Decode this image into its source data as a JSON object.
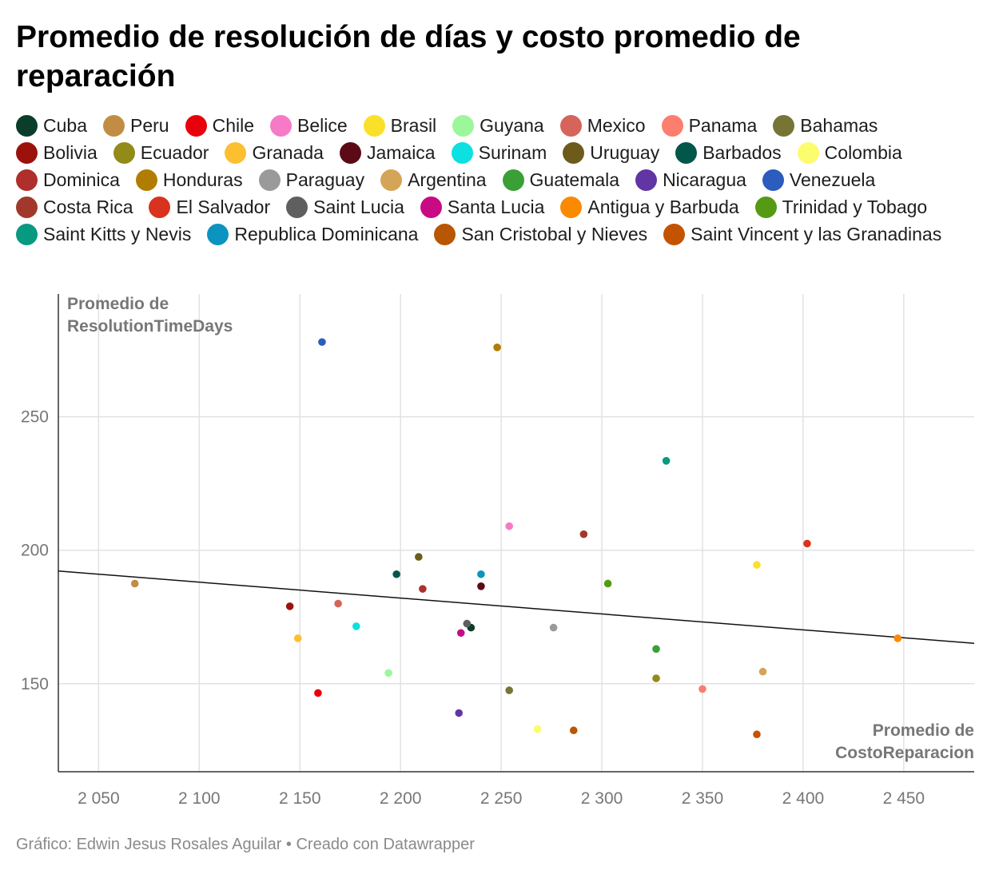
{
  "title": "Promedio de resolución de días y costo promedio de reparación",
  "footer": "Gráfico: Edwin Jesus Rosales Aguilar • Creado con Datawrapper",
  "chart_data": {
    "type": "scatter",
    "title": "Promedio de resolución de días y costo promedio de reparación",
    "xlabel_lines": [
      "Promedio de",
      "CostoReparacion"
    ],
    "ylabel_lines": [
      "Promedio de",
      "ResolutionTimeDays"
    ],
    "xlim": [
      2030,
      2485
    ],
    "ylim": [
      117,
      296
    ],
    "xticks": [
      2050,
      2100,
      2150,
      2200,
      2250,
      2300,
      2350,
      2400,
      2450
    ],
    "xtick_labels": [
      "2 050",
      "2 100",
      "2 150",
      "2 200",
      "2 250",
      "2 300",
      "2 350",
      "2 400",
      "2 450"
    ],
    "yticks": [
      150,
      200,
      250
    ],
    "ytick_labels": [
      "150",
      "200",
      "250"
    ],
    "grid": true,
    "legend_placement": "top",
    "trendline": {
      "x": [
        2030,
        2485
      ],
      "y": [
        192.2,
        165.1
      ]
    },
    "series": [
      {
        "name": "Cuba",
        "color": "#0b3d2b",
        "x": 2235,
        "y": 171
      },
      {
        "name": "Peru",
        "color": "#c18d45",
        "x": 2068,
        "y": 187.5
      },
      {
        "name": "Chile",
        "color": "#e8000b",
        "x": 2159,
        "y": 146.5
      },
      {
        "name": "Belice",
        "color": "#f77ac7",
        "x": 2254,
        "y": 209
      },
      {
        "name": "Brasil",
        "color": "#fbe029",
        "x": 2377,
        "y": 194.5
      },
      {
        "name": "Guyana",
        "color": "#9cf79a",
        "x": 2194,
        "y": 154
      },
      {
        "name": "Mexico",
        "color": "#d6645a",
        "x": 2169,
        "y": 180
      },
      {
        "name": "Panama",
        "color": "#fd7d6e",
        "x": 2350,
        "y": 148
      },
      {
        "name": "Bahamas",
        "color": "#767536",
        "x": 2254,
        "y": 147.5
      },
      {
        "name": "Bolivia",
        "color": "#9b120d",
        "x": 2145,
        "y": 179
      },
      {
        "name": "Ecuador",
        "color": "#928a19",
        "x": 2327,
        "y": 152
      },
      {
        "name": "Granada",
        "color": "#fbbf30",
        "x": 2149,
        "y": 167
      },
      {
        "name": "Jamaica",
        "color": "#5c0a16",
        "x": 2240,
        "y": 186.5
      },
      {
        "name": "Surinam",
        "color": "#0ce0e0",
        "x": 2178,
        "y": 171.5
      },
      {
        "name": "Uruguay",
        "color": "#6d5b1c",
        "x": 2209,
        "y": 197.5
      },
      {
        "name": "Barbados",
        "color": "#03564a",
        "x": 2198,
        "y": 191
      },
      {
        "name": "Colombia",
        "color": "#fcfc6c",
        "x": 2268,
        "y": 133
      },
      {
        "name": "Dominica",
        "color": "#ae2f2c",
        "x": 2211,
        "y": 185.5
      },
      {
        "name": "Honduras",
        "color": "#b07d02",
        "x": 2248,
        "y": 276
      },
      {
        "name": "Paraguay",
        "color": "#9a9a9a",
        "x": 2276,
        "y": 171
      },
      {
        "name": "Argentina",
        "color": "#d4a557",
        "x": 2380,
        "y": 154.5
      },
      {
        "name": "Guatemala",
        "color": "#3aa036",
        "x": 2327,
        "y": 163
      },
      {
        "name": "Nicaragua",
        "color": "#6235a5",
        "x": 2229,
        "y": 139
      },
      {
        "name": "Venezuela",
        "color": "#2b5cbe",
        "x": 2161,
        "y": 278
      },
      {
        "name": "Costa Rica",
        "color": "#a2382c",
        "x": 2291,
        "y": 206
      },
      {
        "name": "El Salvador",
        "color": "#d9321e",
        "x": 2402,
        "y": 202.5
      },
      {
        "name": "Saint Lucia",
        "color": "#5f5f5f",
        "x": 2233,
        "y": 172.5
      },
      {
        "name": "Santa Lucia",
        "color": "#c80b84",
        "x": 2230,
        "y": 169
      },
      {
        "name": "Antigua y Barbuda",
        "color": "#fb8a00",
        "x": 2447,
        "y": 167
      },
      {
        "name": "Trinidad y Tobago",
        "color": "#559a13",
        "x": 2303,
        "y": 187.5
      },
      {
        "name": "Saint Kitts y Nevis",
        "color": "#079a80",
        "x": 2332,
        "y": 233.5
      },
      {
        "name": "Republica Dominicana",
        "color": "#0d93c0",
        "x": 2240,
        "y": 191
      },
      {
        "name": "San Cristobal y Nieves",
        "color": "#b85604",
        "x": 2286,
        "y": 132.5
      },
      {
        "name": "Saint Vincent y las Granadinas",
        "color": "#c45300",
        "x": 2377,
        "y": 131
      }
    ]
  }
}
